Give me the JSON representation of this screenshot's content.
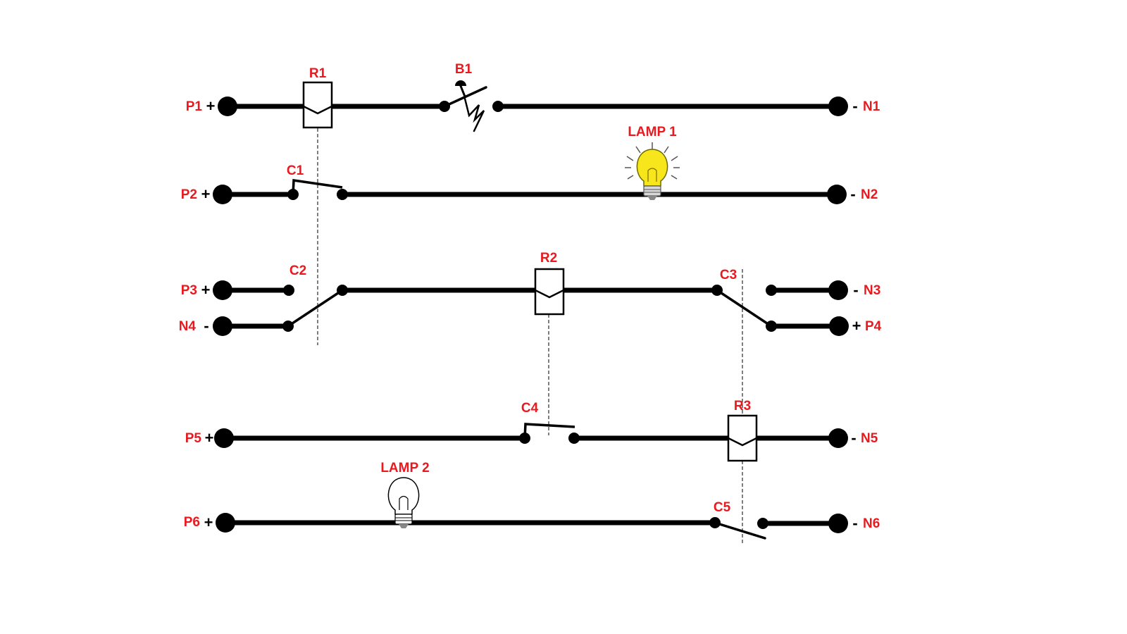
{
  "colors": {
    "label": "#e8191f",
    "wire": "#000000",
    "lamp_on": "#f7e61b",
    "lamp_off": "#ffffff"
  },
  "terminals": {
    "P1": "P1",
    "P2": "P2",
    "P3": "P3",
    "N4": "N4",
    "P5": "P5",
    "P6": "P6",
    "N1": "N1",
    "N2": "N2",
    "N3": "N3",
    "P4": "P4",
    "N5": "N5",
    "N6": "N6"
  },
  "signs": {
    "plus": "+",
    "minus": "-"
  },
  "relays": {
    "R1": "R1",
    "R2": "R2",
    "R3": "R3"
  },
  "contacts": {
    "C1": "C1",
    "C2": "C2",
    "C3": "C3",
    "C4": "C4",
    "C5": "C5"
  },
  "switch": {
    "B1": "B1"
  },
  "lamps": {
    "lamp1": {
      "label": "LAMP 1",
      "state": "on"
    },
    "lamp2": {
      "label": "LAMP 2",
      "state": "off"
    }
  }
}
